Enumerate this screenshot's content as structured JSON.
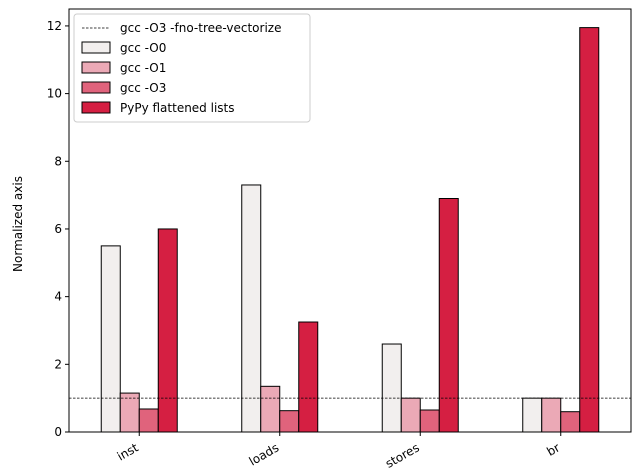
{
  "chart_data": {
    "type": "bar",
    "title": "",
    "xlabel": "",
    "ylabel": "Normalized axis",
    "categories": [
      "inst",
      "loads",
      "stores",
      "br"
    ],
    "ylim": [
      0,
      12.5
    ],
    "yticks": [
      0,
      2,
      4,
      6,
      8,
      10,
      12
    ],
    "grid": false,
    "legend_position": "top-left",
    "series": [
      {
        "name": "gcc -O0",
        "values": [
          5.5,
          7.3,
          2.6,
          1.0
        ],
        "color": "#f2efee"
      },
      {
        "name": "gcc -O1",
        "values": [
          1.15,
          1.35,
          1.0,
          1.0
        ],
        "color": "#eba9b6"
      },
      {
        "name": "gcc -O3",
        "values": [
          0.68,
          0.63,
          0.65,
          0.6
        ],
        "color": "#e0637c"
      },
      {
        "name": "PyPy flattened lists",
        "values": [
          6.0,
          3.25,
          6.9,
          11.95
        ],
        "color": "#d51f42"
      }
    ],
    "reference_line": {
      "name": "gcc -O3 -fno-tree-vectorize",
      "value": 1.0,
      "color": "#000000"
    }
  }
}
